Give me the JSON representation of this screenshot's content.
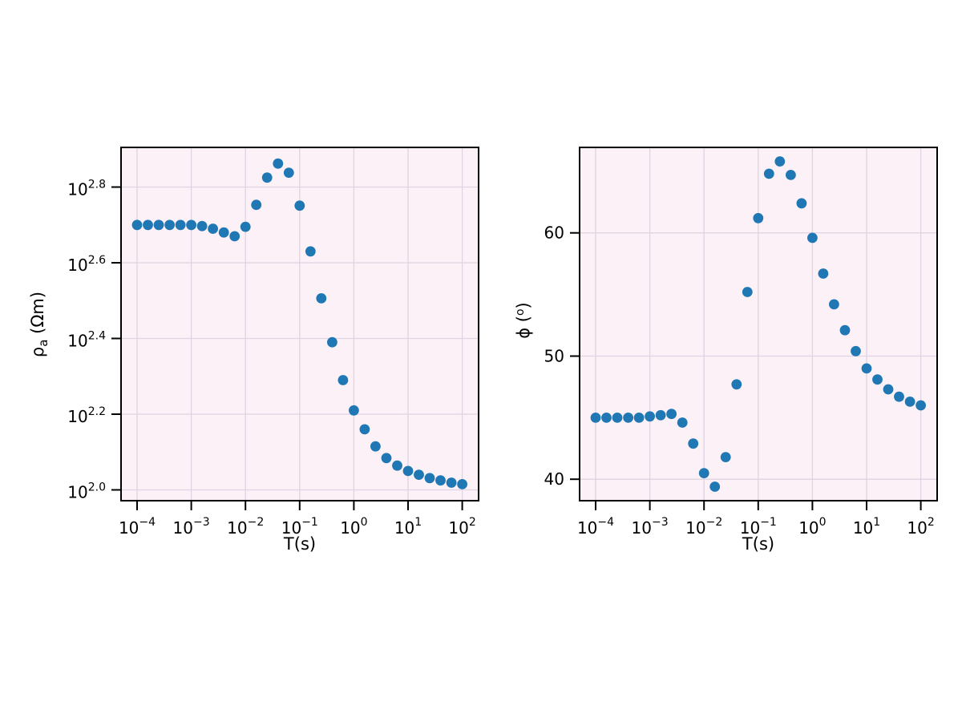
{
  "figure": {
    "background": "#ffffff"
  },
  "labels": {
    "rho": {
      "base": "ρ",
      "sub": "a",
      "rest": " (Ωm)"
    },
    "phi": {
      "pre": "ϕ (",
      "sup": "o",
      "post": ")"
    }
  },
  "chart_data": [
    {
      "id": "rho",
      "type": "scatter",
      "title": "",
      "xlabel": "T(s)",
      "ylabel": "ρ_a (Ωm)",
      "xscale": "log",
      "yscale": "log",
      "x_unit": "s",
      "legend": null,
      "grid": true,
      "x_log10": [
        -4,
        -3.8,
        -3.6,
        -3.4,
        -3.2,
        -3,
        -2.8,
        -2.6,
        -2.4,
        -2.2,
        -2,
        -1.8,
        -1.6,
        -1.4,
        -1.2,
        -1,
        -0.8,
        -0.6,
        -0.4,
        -0.2,
        0,
        0.2,
        0.4,
        0.6,
        0.8,
        1,
        1.2,
        1.4,
        1.6,
        1.8,
        2
      ],
      "y_log10": [
        2.7,
        2.7,
        2.7,
        2.7,
        2.7,
        2.7,
        2.697,
        2.69,
        2.68,
        2.67,
        2.695,
        2.753,
        2.825,
        2.862,
        2.838,
        2.751,
        2.63,
        2.506,
        2.39,
        2.29,
        2.21,
        2.16,
        2.115,
        2.084,
        2.064,
        2.05,
        2.04,
        2.031,
        2.025,
        2.019,
        2.015
      ],
      "xlim_log10": [
        -4.296,
        2.302
      ],
      "ylim_log10": [
        1.9714,
        2.9048
      ],
      "xticks": {
        "values": [
          -4,
          -3,
          -2,
          -1,
          0,
          1,
          2
        ],
        "exponents": [
          "−4",
          "−3",
          "−2",
          "−1",
          "0",
          "1",
          "2"
        ]
      },
      "yticks": {
        "values": [
          2.0,
          2.2,
          2.4,
          2.6,
          2.8
        ],
        "exponents": [
          "2.0",
          "2.2",
          "2.4",
          "2.6",
          "2.8"
        ]
      },
      "colors": {
        "marker": "#1f77b4",
        "background": "#fdf1f8",
        "grid": "#ded4e2"
      }
    },
    {
      "id": "phi",
      "type": "scatter",
      "title": "",
      "xlabel": "T(s)",
      "ylabel": "ϕ (°)",
      "xscale": "log",
      "yscale": "linear",
      "x_unit": "s",
      "legend": null,
      "grid": true,
      "x_log10": [
        -4,
        -3.8,
        -3.6,
        -3.4,
        -3.2,
        -3,
        -2.8,
        -2.6,
        -2.4,
        -2.2,
        -2,
        -1.8,
        -1.6,
        -1.4,
        -1.2,
        -1,
        -0.8,
        -0.6,
        -0.4,
        -0.2,
        0,
        0.2,
        0.4,
        0.6,
        0.8,
        1,
        1.2,
        1.4,
        1.6,
        1.8,
        2
      ],
      "y_deg": [
        45.0,
        45.0,
        45.0,
        45.0,
        45.0,
        45.1,
        45.2,
        45.3,
        44.6,
        42.9,
        40.5,
        39.4,
        41.8,
        47.7,
        55.2,
        61.2,
        64.8,
        65.8,
        64.7,
        62.4,
        59.6,
        56.7,
        54.2,
        52.1,
        50.4,
        49.0,
        48.1,
        47.3,
        46.7,
        46.3,
        46.0
      ],
      "xlim_log10": [
        -4.296,
        2.302
      ],
      "ylim": [
        38.26,
        66.94
      ],
      "xticks": {
        "values": [
          -4,
          -3,
          -2,
          -1,
          0,
          1,
          2
        ],
        "exponents": [
          "−4",
          "−3",
          "−2",
          "−1",
          "0",
          "1",
          "2"
        ]
      },
      "yticks": {
        "values": [
          40,
          50,
          60
        ],
        "labels": [
          "40",
          "50",
          "60"
        ]
      },
      "colors": {
        "marker": "#1f77b4",
        "background": "#fdf1f8",
        "grid": "#ded4e2"
      }
    }
  ]
}
